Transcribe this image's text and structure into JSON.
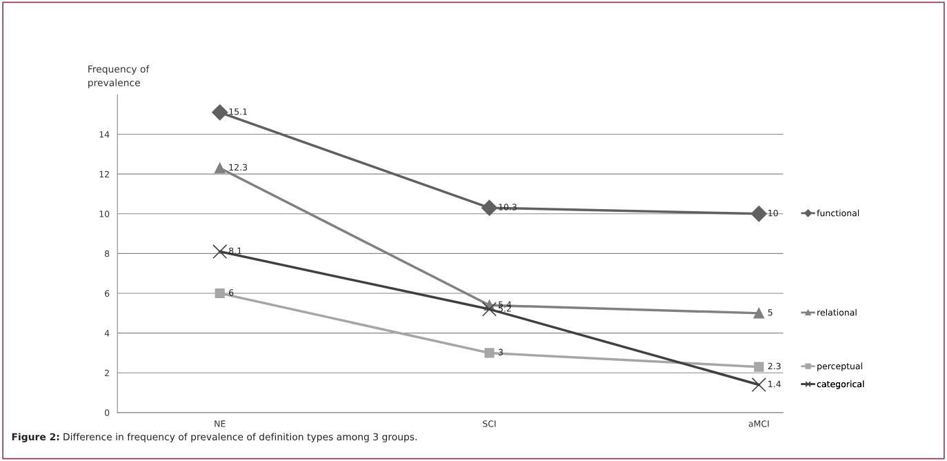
{
  "chart_data": {
    "type": "line",
    "ylabel": "Frequency of\nprevalence",
    "categories": [
      "NE",
      "SCI",
      "aMCI"
    ],
    "series": [
      {
        "name": "functional",
        "color": "#606060",
        "marker": "diamond",
        "values": [
          15.1,
          10.3,
          10
        ]
      },
      {
        "name": "relational",
        "color": "#808080",
        "marker": "triangle",
        "values": [
          12.3,
          5.4,
          5
        ]
      },
      {
        "name": "perceptual",
        "color": "#a6a6a6",
        "marker": "square",
        "values": [
          6,
          3,
          2.3
        ]
      },
      {
        "name": "categorical",
        "color": "#404040",
        "marker": "cross",
        "values": [
          8.1,
          5.2,
          1.4
        ]
      }
    ],
    "ylim": [
      0,
      16
    ],
    "yticks": [
      0,
      2,
      4,
      6,
      8,
      10,
      12,
      14
    ],
    "grid": "y",
    "legend": "right",
    "data_labels": true,
    "line_style": "solid",
    "annotations": [
      "Figure 2: Difference in frequency of prevalence of definition types among 3 groups."
    ]
  }
}
